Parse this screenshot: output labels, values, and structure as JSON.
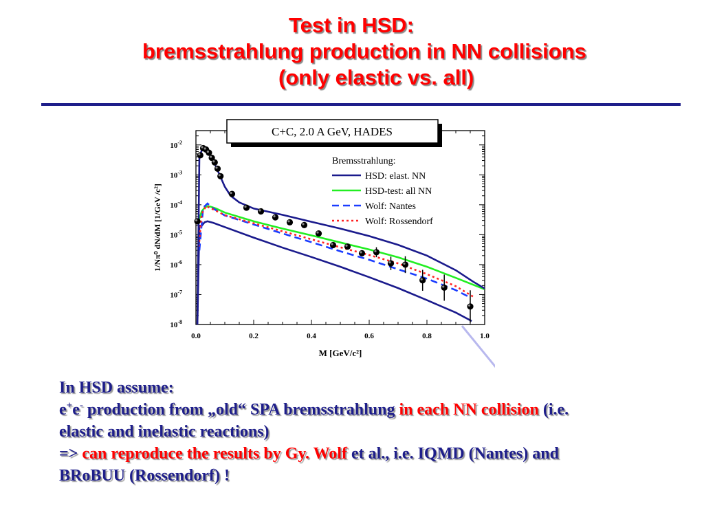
{
  "slide": {
    "title_line1": "Test in HSD:",
    "title_line2": "bremsstrahlung production in NN collisions",
    "title_line3": "(only elastic vs. all)"
  },
  "text": {
    "heading": "In HSD assume:",
    "l1_a": "e",
    "l1_sup1": "+",
    "l1_b": "e",
    "l1_sup2": "-",
    "l1_c": " production from „old“ SPA bremsstrahlung ",
    "l1_red": "in each NN collision",
    "l1_d": " (i.e.",
    "l2": "elastic and inelastic reactions)",
    "l3_a": "=> ",
    "l3_red": "can reproduce the results by Gy. Wolf ",
    "l3_b": " et al., i.e. IQMD (Nantes) and",
    "l4": "BRoBUU (Rossendorf) !"
  },
  "colors": {
    "title": "#ff0000",
    "text": "#1e1e8a",
    "hsd_elast": "#1a1a8c",
    "hsd_all": "#22ee22",
    "wolf_nantes": "#1a3cff",
    "wolf_rossendorf": "#ff2222",
    "data_points": "#000000"
  },
  "chart_data": {
    "type": "line",
    "title": "C+C,  2.0 A GeV, HADES",
    "xlabel": "M [GeV/c²]",
    "ylabel": "1/Nπ⁰ dN/dM  [1/GeV /c²]",
    "xlim": [
      0.0,
      1.0
    ],
    "ylim": [
      1e-08,
      0.03
    ],
    "y_scale": "log",
    "x_ticks": [
      "0.0",
      "0.2",
      "0.4",
      "0.6",
      "0.8",
      "1.0"
    ],
    "y_ticks": [
      {
        "value": 1e-08,
        "base": "10",
        "exp": "-8"
      },
      {
        "value": 1e-07,
        "base": "10",
        "exp": "-7"
      },
      {
        "value": 1e-06,
        "base": "10",
        "exp": "-6"
      },
      {
        "value": 1e-05,
        "base": "10",
        "exp": "-5"
      },
      {
        "value": 0.0001,
        "base": "10",
        "exp": "-4"
      },
      {
        "value": 0.001,
        "base": "10",
        "exp": "-3"
      },
      {
        "value": 0.01,
        "base": "10",
        "exp": "-2"
      }
    ],
    "legend": {
      "title": "Bremsstrahlung:",
      "placement": "top-right",
      "entries": [
        "HSD: elast. NN",
        "HSD-test: all NN",
        "Wolf: Nantes",
        "Wolf: Rossendorf"
      ]
    },
    "series": [
      {
        "name": "HSD: elast. NN",
        "style": "solid",
        "colorKey": "hsd_elast",
        "points": [
          [
            0.005,
            1e-08
          ],
          [
            0.012,
            2e-05
          ],
          [
            0.02,
            2e-05
          ],
          [
            0.03,
            2.6e-05
          ],
          [
            0.04,
            2.8e-05
          ],
          [
            0.06,
            2.5e-05
          ],
          [
            0.1,
            1.8e-05
          ],
          [
            0.2,
            8e-06
          ],
          [
            0.3,
            3.7e-06
          ],
          [
            0.4,
            1.8e-06
          ],
          [
            0.5,
            8.5e-07
          ],
          [
            0.6,
            3.8e-07
          ],
          [
            0.7,
            1.65e-07
          ],
          [
            0.8,
            6.5e-08
          ],
          [
            0.9,
            2.5e-08
          ],
          [
            0.955,
            1.3e-08
          ]
        ]
      },
      {
        "name": "HSD-test: all NN",
        "style": "solid",
        "colorKey": "hsd_all",
        "points": [
          [
            0.01,
            3e-05
          ],
          [
            0.02,
            6e-05
          ],
          [
            0.03,
            8e-05
          ],
          [
            0.04,
            9e-05
          ],
          [
            0.05,
            8.7e-05
          ],
          [
            0.07,
            7.5e-05
          ],
          [
            0.1,
            5.5e-05
          ],
          [
            0.2,
            2.8e-05
          ],
          [
            0.3,
            1.6e-05
          ],
          [
            0.4,
            9.5e-06
          ],
          [
            0.5,
            5.5e-06
          ],
          [
            0.6,
            3.2e-06
          ],
          [
            0.7,
            1.75e-06
          ],
          [
            0.8,
            8.5e-07
          ],
          [
            0.9,
            3.6e-07
          ],
          [
            1.0,
            1.5e-07
          ]
        ]
      },
      {
        "name": "Wolf: Nantes",
        "style": "dashed",
        "colorKey": "wolf_nantes",
        "points": [
          [
            0.012,
            3e-06
          ],
          [
            0.025,
            8e-05
          ],
          [
            0.04,
            0.00011
          ],
          [
            0.06,
            7.5e-05
          ],
          [
            0.1,
            4.4e-05
          ],
          [
            0.2,
            2.2e-05
          ],
          [
            0.3,
            1.1e-05
          ],
          [
            0.4,
            5.6e-06
          ],
          [
            0.5,
            2.8e-06
          ],
          [
            0.6,
            1.45e-06
          ],
          [
            0.7,
            7e-07
          ],
          [
            0.8,
            3.4e-07
          ],
          [
            0.9,
            1.4e-07
          ],
          [
            0.95,
            8e-08
          ]
        ]
      },
      {
        "name": "Wolf: Rossendorf",
        "style": "dotted",
        "colorKey": "wolf_rossendorf",
        "points": [
          [
            0.01,
            4e-06
          ],
          [
            0.02,
            5e-05
          ],
          [
            0.035,
            9e-05
          ],
          [
            0.06,
            7e-05
          ],
          [
            0.1,
            4.5e-05
          ],
          [
            0.2,
            2.4e-05
          ],
          [
            0.3,
            1.3e-05
          ],
          [
            0.4,
            7e-06
          ],
          [
            0.5,
            3.8e-06
          ],
          [
            0.6,
            2.1e-06
          ],
          [
            0.7,
            1.1e-06
          ],
          [
            0.8,
            4.8e-07
          ],
          [
            0.9,
            1.9e-07
          ],
          [
            0.96,
            8.5e-08
          ]
        ]
      },
      {
        "name": "HSD: elast. NN (total)",
        "style": "solid",
        "colorKey": "hsd_elast",
        "points": [
          [
            0.005,
            1e-08
          ],
          [
            0.012,
            0.004
          ],
          [
            0.02,
            0.0065
          ],
          [
            0.03,
            0.007
          ],
          [
            0.04,
            0.006
          ],
          [
            0.06,
            0.003
          ],
          [
            0.08,
            0.0011
          ],
          [
            0.1,
            0.0004
          ],
          [
            0.12,
            0.0002
          ],
          [
            0.15,
            0.00012
          ],
          [
            0.2,
            7.5e-05
          ],
          [
            0.3,
            4.6e-05
          ],
          [
            0.4,
            2.7e-05
          ],
          [
            0.5,
            1.6e-05
          ],
          [
            0.6,
            9e-06
          ],
          [
            0.7,
            4.6e-06
          ],
          [
            0.8,
            2e-06
          ],
          [
            0.9,
            6.5e-07
          ],
          [
            0.96,
            2.7e-07
          ],
          [
            1.0,
            1.6e-07
          ]
        ]
      }
    ],
    "data_points": [
      {
        "x": 0.005,
        "y": 2.8e-05
      },
      {
        "x": 0.015,
        "y": 0.0045
      },
      {
        "x": 0.025,
        "y": 0.0078
      },
      {
        "x": 0.035,
        "y": 0.007
      },
      {
        "x": 0.045,
        "y": 0.0055
      },
      {
        "x": 0.055,
        "y": 0.0037
      },
      {
        "x": 0.065,
        "y": 0.0026
      },
      {
        "x": 0.075,
        "y": 0.0016
      },
      {
        "x": 0.085,
        "y": 0.0009
      },
      {
        "x": 0.125,
        "y": 0.00023
      },
      {
        "x": 0.175,
        "y": 8e-05
      },
      {
        "x": 0.225,
        "y": 6e-05
      },
      {
        "x": 0.275,
        "y": 3.8e-05
      },
      {
        "x": 0.325,
        "y": 2.6e-05
      },
      {
        "x": 0.375,
        "y": 2.1e-05
      },
      {
        "x": 0.425,
        "y": 1.1e-05
      },
      {
        "x": 0.475,
        "y": 4.5e-06
      },
      {
        "x": 0.525,
        "y": 4e-06
      },
      {
        "x": 0.575,
        "y": 2.4e-06
      },
      {
        "x": 0.625,
        "y": 2.6e-06
      },
      {
        "x": 0.675,
        "y": 1.1e-06
      },
      {
        "x": 0.725,
        "y": 1e-06
      },
      {
        "x": 0.785,
        "y": 3e-07
      },
      {
        "x": 0.86,
        "y": 1.7e-07
      },
      {
        "x": 0.95,
        "y": 4e-08
      }
    ]
  }
}
